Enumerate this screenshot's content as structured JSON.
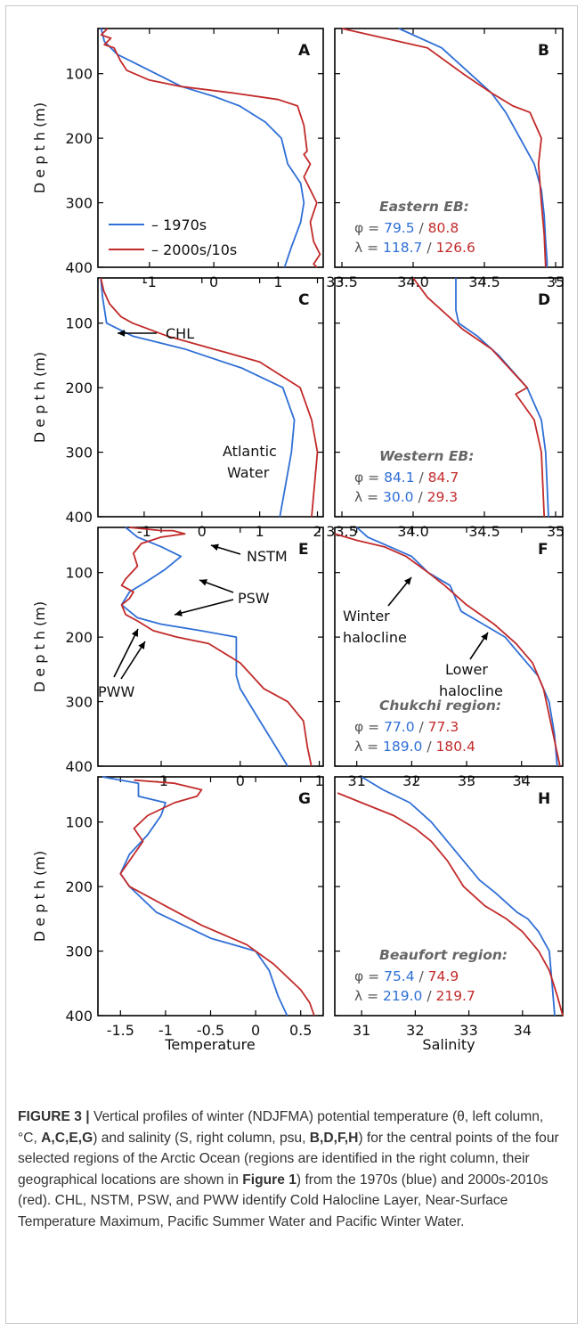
{
  "colors": {
    "blue": "#2f6fd6",
    "red": "#c22a2a",
    "axis": "#000000",
    "label": "#111111",
    "note": "#666666"
  },
  "legend": {
    "blue": "– 1970s",
    "red": "– 2000s/10s"
  },
  "axis_titles": {
    "ylabel": "D e p t h  (m)",
    "temp": "Temperature",
    "sal": "Salinity"
  },
  "annotations": {
    "chl": "CHL",
    "atlantic_1": "Atlantic",
    "atlantic_2": "Water",
    "nstm": "NSTM",
    "psw": "PSW",
    "pww": "PWW",
    "winter_1": "Winter",
    "winter_2": "halocline",
    "lower_1": "Lower",
    "lower_2": "halocline"
  },
  "chart_data": [
    {
      "panel": "A",
      "type": "line",
      "variable": "temperature",
      "xlim": [
        -1.8,
        1.7
      ],
      "ylim": [
        400,
        30
      ],
      "xticks": [
        -1,
        0,
        1
      ],
      "xtick_labels": [
        "-1",
        "0",
        "1"
      ],
      "yticks": [
        100,
        200,
        300,
        400
      ],
      "ytick_labels": [
        "100",
        "200",
        "300",
        "400"
      ],
      "series": [
        {
          "name": "1970s",
          "color": "blue",
          "x": [
            -1.75,
            -1.7,
            -1.5,
            -1.2,
            -0.9,
            -0.5,
            0,
            0.4,
            0.8,
            1.05,
            1.15,
            1.35,
            1.4,
            1.35,
            1.2,
            1.1
          ],
          "y": [
            30,
            50,
            70,
            85,
            100,
            120,
            135,
            150,
            175,
            200,
            240,
            270,
            300,
            330,
            370,
            400
          ]
        },
        {
          "name": "2000s/10s",
          "color": "red",
          "x": [
            -1.65,
            -1.75,
            -1.6,
            -1.7,
            -1.55,
            -1.5,
            -1.45,
            -1.35,
            -1.0,
            -0.5,
            0.3,
            1.0,
            1.3,
            1.4,
            1.45,
            1.4,
            1.5,
            1.4,
            1.6,
            1.5,
            1.55,
            1.65,
            1.55,
            1.6
          ],
          "y": [
            30,
            40,
            45,
            55,
            60,
            70,
            80,
            95,
            110,
            120,
            130,
            140,
            150,
            180,
            220,
            225,
            240,
            260,
            300,
            330,
            360,
            380,
            395,
            400
          ]
        }
      ],
      "legend": true
    },
    {
      "panel": "B",
      "type": "line",
      "variable": "salinity",
      "xlim": [
        33.45,
        35.05
      ],
      "ylim": [
        400,
        30
      ],
      "xticks": [
        33.5,
        34.0,
        34.5,
        35.0
      ],
      "xtick_labels": [
        "33.5",
        "34.0",
        "34.5",
        "35"
      ],
      "yticks": [
        100,
        200,
        300,
        400
      ],
      "series": [
        {
          "name": "1970s",
          "color": "blue",
          "x": [
            33.9,
            34.2,
            34.4,
            34.55,
            34.65,
            34.75,
            34.85,
            34.9,
            34.92,
            34.93,
            34.94,
            34.94
          ],
          "y": [
            30,
            60,
            100,
            130,
            160,
            200,
            240,
            280,
            320,
            360,
            390,
            400
          ]
        },
        {
          "name": "2000s/10s",
          "color": "red",
          "x": [
            33.5,
            33.6,
            34.1,
            34.35,
            34.55,
            34.7,
            34.82,
            34.9,
            34.88,
            34.9,
            34.92,
            34.93
          ],
          "y": [
            30,
            35,
            60,
            100,
            130,
            150,
            160,
            200,
            240,
            300,
            350,
            400
          ]
        }
      ],
      "region": "Eastern EB:",
      "phi": [
        "79.5",
        "80.8"
      ],
      "lambda": [
        "118.7",
        "126.6"
      ]
    },
    {
      "panel": "C",
      "type": "line",
      "variable": "temperature",
      "xlim": [
        -1.8,
        2.1
      ],
      "ylim": [
        400,
        30
      ],
      "xticks": [
        -1,
        0,
        1,
        2
      ],
      "xtick_labels": [
        "-1",
        "0",
        "1",
        "2"
      ],
      "yticks": [
        100,
        200,
        300,
        400
      ],
      "series": [
        {
          "name": "1970s",
          "color": "blue",
          "x": [
            -1.75,
            -1.72,
            -1.65,
            -1.2,
            -0.3,
            0.7,
            1.4,
            1.6,
            1.55,
            1.45,
            1.35
          ],
          "y": [
            30,
            60,
            100,
            120,
            140,
            170,
            200,
            250,
            300,
            350,
            400
          ]
        },
        {
          "name": "2000s/10s",
          "color": "red",
          "x": [
            -1.75,
            -1.7,
            -1.6,
            -1.4,
            -1.2,
            -0.6,
            0.2,
            1.0,
            1.7,
            1.9,
            2.0,
            1.9
          ],
          "y": [
            30,
            50,
            70,
            90,
            100,
            120,
            140,
            160,
            200,
            250,
            300,
            400
          ]
        }
      ]
    },
    {
      "panel": "D",
      "type": "line",
      "variable": "salinity",
      "xlim": [
        33.45,
        35.05
      ],
      "ylim": [
        400,
        30
      ],
      "xticks": [
        33.5,
        34.0,
        34.5,
        35.0
      ],
      "xtick_labels": [
        "33.5",
        "34.0",
        "34.5",
        "35"
      ],
      "yticks": [
        100,
        200,
        300,
        400
      ],
      "series": [
        {
          "name": "1970s",
          "color": "blue",
          "x": [
            34.3,
            34.3,
            34.32,
            34.45,
            34.6,
            34.8,
            34.9,
            34.93,
            34.95
          ],
          "y": [
            30,
            80,
            100,
            120,
            150,
            200,
            250,
            300,
            400
          ]
        },
        {
          "name": "2000s/10s",
          "color": "red",
          "x": [
            34.0,
            34.1,
            34.35,
            34.55,
            34.8,
            34.72,
            34.85,
            34.9,
            34.92
          ],
          "y": [
            30,
            60,
            110,
            140,
            200,
            210,
            250,
            300,
            400
          ]
        }
      ],
      "region": "Western EB:",
      "phi": [
        "84.1",
        "84.7"
      ],
      "lambda": [
        "30.0",
        "29.3"
      ]
    },
    {
      "panel": "E",
      "type": "line",
      "variable": "temperature",
      "xlim": [
        -1.8,
        1.05
      ],
      "ylim": [
        400,
        30
      ],
      "xticks": [
        -1,
        0,
        1
      ],
      "xtick_labels": [
        "-1",
        "0",
        "1"
      ],
      "yticks": [
        100,
        200,
        300,
        400
      ],
      "series": [
        {
          "name": "1970s",
          "color": "blue",
          "x": [
            -1.45,
            -1.3,
            -1.0,
            -0.75,
            -0.95,
            -1.2,
            -1.4,
            -1.5,
            -1.3,
            -1.0,
            -0.5,
            -0.05,
            -0.05,
            0.0,
            0.2,
            0.4,
            0.6
          ],
          "y": [
            30,
            45,
            60,
            75,
            95,
            115,
            130,
            150,
            170,
            180,
            190,
            200,
            260,
            280,
            320,
            360,
            400
          ]
        },
        {
          "name": "2000s/10s",
          "color": "red",
          "x": [
            -1.4,
            -1.0,
            -0.85,
            -0.7,
            -1.0,
            -1.25,
            -1.35,
            -1.3,
            -1.45,
            -1.5,
            -1.35,
            -1.4,
            -1.5,
            -1.45,
            -1.3,
            -1.1,
            -0.8,
            -0.4,
            0.0,
            0.3,
            0.6,
            0.8,
            0.85,
            0.9
          ],
          "y": [
            30,
            35,
            35,
            40,
            45,
            55,
            70,
            90,
            110,
            120,
            130,
            140,
            150,
            165,
            175,
            190,
            200,
            210,
            240,
            280,
            300,
            330,
            370,
            400
          ]
        }
      ]
    },
    {
      "panel": "F",
      "type": "line",
      "variable": "salinity",
      "xlim": [
        30.6,
        34.75
      ],
      "ylim": [
        400,
        30
      ],
      "xticks": [
        31,
        32,
        33,
        34
      ],
      "xtick_labels": [
        "31",
        "32",
        "33",
        "34"
      ],
      "yticks": [
        100,
        200,
        300,
        400
      ],
      "series": [
        {
          "name": "1970s",
          "color": "blue",
          "x": [
            31.0,
            31.2,
            31.6,
            32.0,
            32.3,
            32.7,
            32.9,
            33.3,
            33.7,
            34.0,
            34.3,
            34.5,
            34.6,
            34.65
          ],
          "y": [
            30,
            45,
            60,
            75,
            100,
            120,
            160,
            180,
            200,
            230,
            260,
            300,
            350,
            400
          ]
        },
        {
          "name": "2000s/10s",
          "color": "red",
          "x": [
            30.6,
            31.0,
            31.5,
            31.9,
            32.3,
            32.6,
            33.0,
            33.5,
            33.9,
            34.2,
            34.4,
            34.5,
            34.6,
            34.7
          ],
          "y": [
            40,
            50,
            60,
            75,
            100,
            120,
            150,
            180,
            210,
            240,
            280,
            320,
            360,
            400
          ]
        }
      ],
      "region": "Chukchi region:",
      "phi": [
        "77.0",
        "77.3"
      ],
      "lambda": [
        "189.0",
        "180.4"
      ]
    },
    {
      "panel": "G",
      "type": "line",
      "variable": "temperature",
      "xlim": [
        -1.75,
        0.75
      ],
      "ylim": [
        400,
        30
      ],
      "xticks": [
        -1.5,
        -1,
        -0.5,
        0,
        0.5
      ],
      "xtick_labels": [
        "-1.5",
        "-1",
        "-0.5",
        "0",
        "0.5"
      ],
      "yticks": [
        100,
        200,
        300,
        400
      ],
      "series": [
        {
          "name": "1970s",
          "color": "blue",
          "x": [
            -1.7,
            -1.3,
            -1.3,
            -1.0,
            -1.05,
            -1.2,
            -1.4,
            -1.5,
            -1.4,
            -1.1,
            -0.5,
            0.0,
            0.15,
            0.25,
            0.35
          ],
          "y": [
            30,
            40,
            60,
            70,
            90,
            120,
            150,
            180,
            200,
            240,
            280,
            300,
            330,
            370,
            400
          ]
        },
        {
          "name": "2000s/10s",
          "color": "red",
          "x": [
            -1.35,
            -0.9,
            -0.6,
            -0.65,
            -0.9,
            -1.2,
            -1.35,
            -1.25,
            -1.35,
            -1.5,
            -1.4,
            -1.0,
            -0.6,
            -0.1,
            0.2,
            0.5,
            0.6,
            0.65
          ],
          "y": [
            35,
            40,
            50,
            60,
            70,
            90,
            110,
            130,
            150,
            180,
            200,
            230,
            260,
            290,
            320,
            360,
            380,
            400
          ]
        }
      ]
    },
    {
      "panel": "H",
      "type": "line",
      "variable": "salinity",
      "xlim": [
        30.5,
        34.75
      ],
      "ylim": [
        400,
        30
      ],
      "xticks": [
        31,
        32,
        33,
        34
      ],
      "xtick_labels": [
        "31",
        "32",
        "33",
        "34"
      ],
      "yticks": [
        100,
        200,
        300,
        400
      ],
      "series": [
        {
          "name": "1970s",
          "color": "blue",
          "x": [
            31.0,
            31.4,
            31.9,
            32.3,
            32.6,
            32.8,
            33.2,
            33.5,
            33.9,
            34.1,
            34.3,
            34.5,
            34.55,
            34.6
          ],
          "y": [
            30,
            50,
            70,
            100,
            130,
            150,
            190,
            210,
            240,
            250,
            270,
            300,
            350,
            400
          ]
        },
        {
          "name": "2000s/10s",
          "color": "red",
          "x": [
            30.55,
            31.0,
            31.6,
            32.0,
            32.3,
            32.6,
            32.9,
            33.3,
            33.7,
            34.0,
            34.3,
            34.5,
            34.65,
            34.75
          ],
          "y": [
            55,
            70,
            90,
            110,
            130,
            160,
            200,
            230,
            250,
            270,
            300,
            330,
            370,
            400
          ]
        }
      ],
      "region": "Beaufort region:",
      "phi": [
        "75.4",
        "74.9"
      ],
      "lambda": [
        "219.0",
        "219.7"
      ]
    }
  ],
  "caption": {
    "label": "FIGURE 3 |",
    "t1": " Vertical profiles of winter (NDJFMA) potential temperature (θ, left column, °C, ",
    "b1": "A,C,E,G",
    "t2": ") and salinity (S, right column, psu, ",
    "b2": "B,D,F,H",
    "t3": ") for the central points of the four selected regions of the Arctic Ocean (regions are identified in the right column, their geographical locations are shown in ",
    "b3": "Figure 1",
    "t4": ") from the 1970s (blue) and 2000s-2010s (red). CHL, NSTM, PSW, and PWW identify Cold Halocline Layer, Near-Surface Temperature Maximum, Pacific Summer Water and Pacific Winter Water."
  }
}
